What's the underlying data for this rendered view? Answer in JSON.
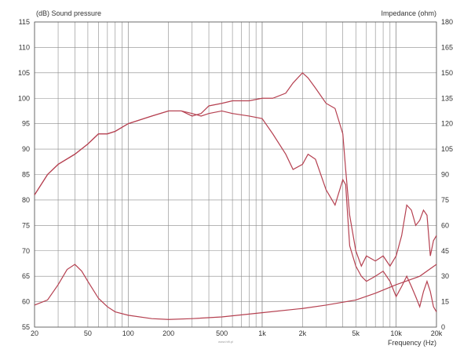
{
  "chart_data": {
    "type": "line",
    "ylabel_left": "(dB) Sound pressure",
    "ylabel_right": "Impedance (ohm)",
    "xlabel": "Frequency (Hz)",
    "xscale": "log",
    "xlim": [
      20,
      20000
    ],
    "ylim_left": [
      55,
      115
    ],
    "ylim_right": [
      0,
      180
    ],
    "grid": true,
    "x_ticks": [
      20,
      50,
      100,
      200,
      500,
      1000,
      2000,
      5000,
      10000,
      20000
    ],
    "x_tick_labels": [
      "20",
      "50",
      "100",
      "200",
      "500",
      "1k",
      "2k",
      "5k",
      "10k",
      "20k"
    ],
    "y_ticks_left": [
      55,
      60,
      65,
      70,
      75,
      80,
      85,
      90,
      95,
      100,
      105,
      110,
      115
    ],
    "y_ticks_right": [
      0,
      15,
      30,
      45,
      60,
      75,
      90,
      105,
      120,
      135,
      150,
      165,
      180
    ],
    "series": [
      {
        "axis": "left",
        "x": [
          20,
          25,
          30,
          40,
          50,
          60,
          70,
          80,
          100,
          150,
          200,
          250,
          300,
          350,
          400,
          500,
          600,
          800,
          1000,
          1200,
          1500,
          1700,
          2000,
          2200,
          2500,
          3000,
          3500,
          4000,
          4200,
          4500,
          5000,
          5500,
          6000,
          7000,
          8000,
          9000,
          10000,
          11000,
          12000,
          13000,
          14000,
          15000,
          16000,
          17000,
          18000,
          19000,
          20000
        ],
        "values": [
          81,
          85,
          87,
          89,
          91,
          93,
          93,
          93.5,
          95,
          96.5,
          97.5,
          97.5,
          97,
          96.5,
          97,
          97.5,
          97,
          96.5,
          96,
          93,
          89,
          86,
          87,
          89,
          88,
          82,
          79,
          84,
          83,
          71,
          67,
          65,
          64,
          65,
          66,
          64,
          61,
          63,
          65,
          63,
          61,
          59,
          62,
          64,
          62,
          59,
          58
        ]
      },
      {
        "axis": "left",
        "x": [
          20,
          25,
          30,
          40,
          50,
          60,
          70,
          80,
          100,
          150,
          200,
          250,
          300,
          350,
          400,
          500,
          600,
          700,
          800,
          1000,
          1200,
          1500,
          1700,
          2000,
          2200,
          2500,
          3000,
          3500,
          4000,
          4200,
          4500,
          5000,
          5500,
          6000,
          7000,
          8000,
          9000,
          10000,
          11000,
          12000,
          13000,
          14000,
          15000,
          16000,
          17000,
          18000,
          19000,
          20000
        ],
        "values": [
          81,
          85,
          87,
          89,
          91,
          93,
          93,
          93.5,
          95,
          96.5,
          97.5,
          97.5,
          96.5,
          97,
          98.5,
          99,
          99.5,
          99.5,
          99.5,
          100,
          100,
          101,
          103,
          105,
          104,
          102,
          99,
          98,
          93,
          86,
          77,
          70,
          67,
          69,
          68,
          69,
          67,
          69,
          73,
          79,
          78,
          75,
          76,
          78,
          77,
          69,
          72,
          73
        ]
      },
      {
        "axis": "right",
        "x": [
          20,
          25,
          30,
          35,
          40,
          45,
          50,
          60,
          70,
          80,
          100,
          150,
          200,
          300,
          500,
          1000,
          2000,
          3000,
          5000,
          7000,
          10000,
          15000,
          20000
        ],
        "values": [
          13,
          16,
          25,
          34,
          37,
          33,
          27,
          17,
          12,
          9,
          7,
          5,
          4.5,
          5,
          6,
          8.5,
          11,
          13,
          16,
          20,
          25,
          30,
          37
        ]
      }
    ]
  },
  "footer": {
    "watermark": "www.hifi.pl"
  }
}
